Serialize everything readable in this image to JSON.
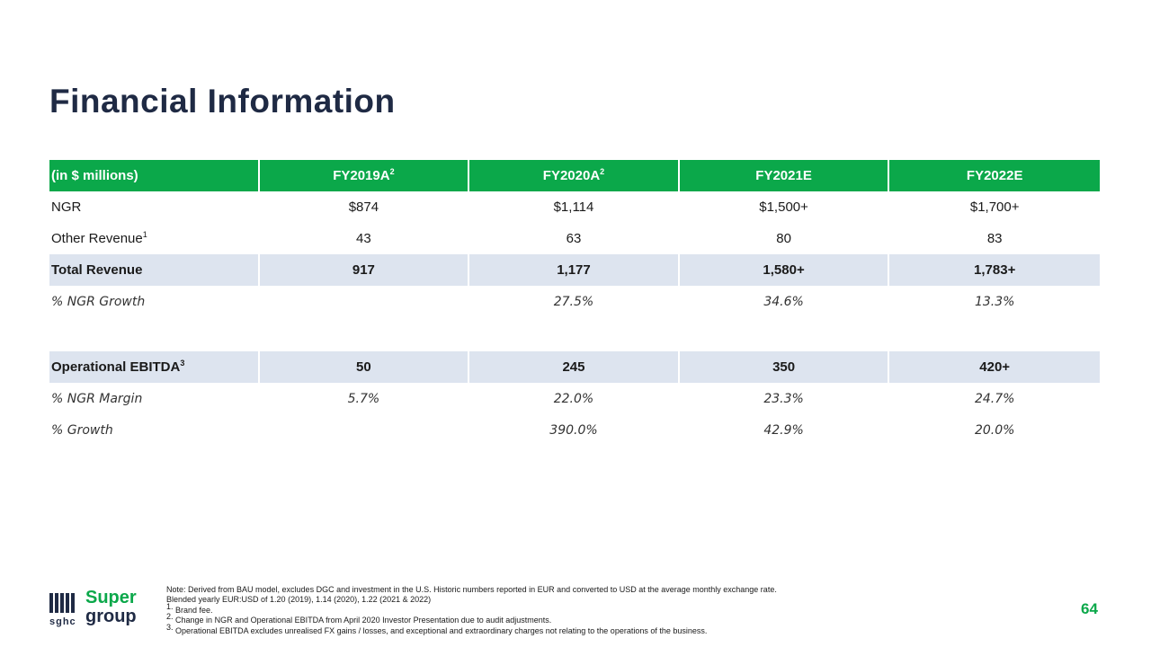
{
  "title": "Financial Information",
  "table": {
    "header": [
      "(in $ millions)",
      "FY2019A",
      "FY2020A",
      "FY2021E",
      "FY2022E"
    ],
    "header_sup": [
      "",
      "2",
      "2",
      "",
      ""
    ],
    "rows": [
      {
        "label": "NGR",
        "label_sup": "",
        "values": [
          "$874",
          "$1,114",
          "$1,500+",
          "$1,700+"
        ]
      },
      {
        "label": "Other Revenue",
        "label_sup": "1",
        "values": [
          "43",
          "63",
          "80",
          "83"
        ]
      },
      {
        "label": "Total Revenue",
        "label_sup": "",
        "values": [
          "917",
          "1,177",
          "1,580+",
          "1,783+"
        ]
      },
      {
        "label": "% NGR Growth",
        "label_sup": "",
        "values": [
          "",
          "27.5%",
          "34.6%",
          "13.3%"
        ]
      },
      {
        "label": "Operational EBITDA",
        "label_sup": "3",
        "values": [
          "50",
          "245",
          "350",
          "420+"
        ]
      },
      {
        "label": "% NGR Margin",
        "label_sup": "",
        "values": [
          "5.7%",
          "22.0%",
          "23.3%",
          "24.7%"
        ]
      },
      {
        "label": "% Growth",
        "label_sup": "",
        "values": [
          "",
          "390.0%",
          "42.9%",
          "20.0%"
        ]
      }
    ]
  },
  "logo": {
    "super": "Super",
    "group": "group",
    "sghc": "sghc"
  },
  "notes": [
    "Note: Derived from BAU model, excludes DGC and investment in the U.S. Historic numbers reported in EUR and converted to USD at the average monthly exchange rate.",
    "Blended yearly EUR:USD of 1.20 (2019), 1.14 (2020), 1.22 (2021 & 2022)",
    "Brand fee.",
    "Change in NGR and Operational EBITDA from April 2020 Investor Presentation due to audit adjustments.",
    "Operational EBITDA excludes unrealised FX gains / losses, and exceptional and extraordinary charges not relating to the operations of the business."
  ],
  "note_markers": [
    "1.",
    "2.",
    "3."
  ],
  "page_number": "64",
  "colors": {
    "accent_green": "#0ba84a",
    "navy": "#1f2a44",
    "row_shade": "#dde4ef"
  }
}
